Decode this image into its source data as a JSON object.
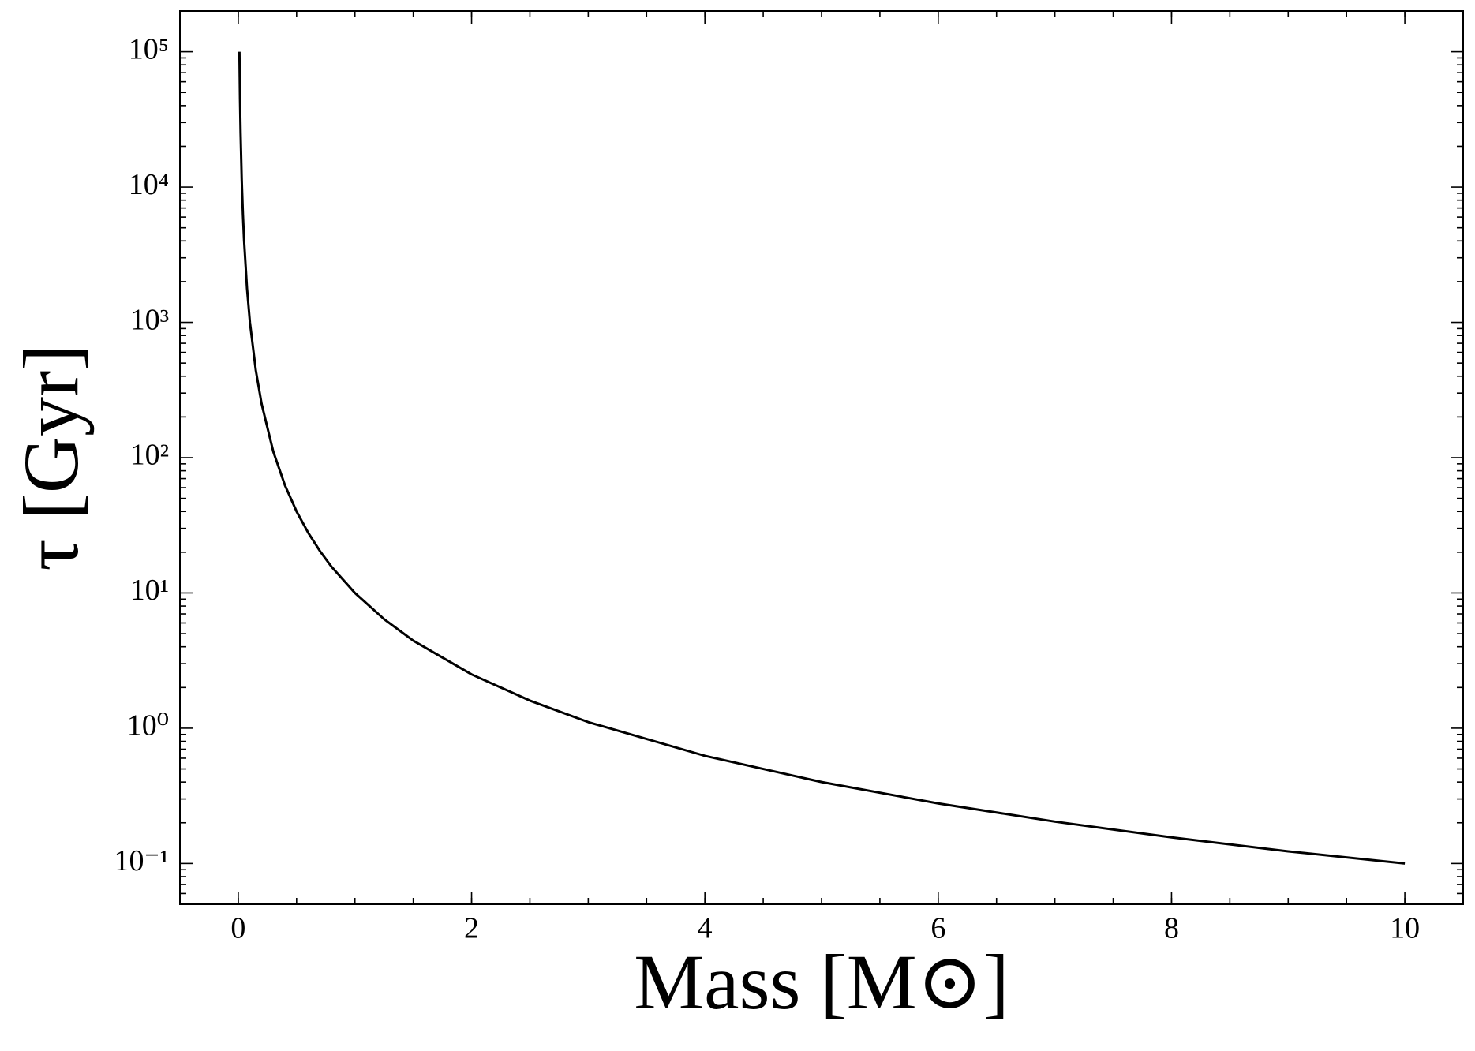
{
  "chart_data": {
    "type": "line",
    "xlabel": "Mass [M⊙]",
    "ylabel": "τ [Gyr]",
    "x": [
      0.01,
      0.015,
      0.02,
      0.03,
      0.04,
      0.05,
      0.075,
      0.1,
      0.15,
      0.2,
      0.3,
      0.4,
      0.5,
      0.6,
      0.7,
      0.8,
      1,
      1.25,
      1.5,
      2,
      2.5,
      3,
      4,
      5,
      6,
      7,
      8,
      9,
      10
    ],
    "series": [
      {
        "color": "#000000",
        "values": [
          100000,
          44444,
          25000,
          11111,
          6250,
          4000,
          1778,
          1000,
          444,
          250,
          111,
          62.5,
          40,
          27.8,
          20.4,
          15.6,
          10,
          6.4,
          4.44,
          2.5,
          1.6,
          1.11,
          0.625,
          0.4,
          0.278,
          0.204,
          0.156,
          0.123,
          0.1
        ]
      }
    ],
    "xlim": [
      -0.5,
      10.5
    ],
    "xticks": [
      0,
      2,
      4,
      6,
      8,
      10
    ],
    "ylim": [
      0.05,
      200000
    ],
    "yscale": "log",
    "yticks": [
      {
        "value": 0.1,
        "label": "10⁻¹"
      },
      {
        "value": 1,
        "label": "10⁰"
      },
      {
        "value": 10,
        "label": "10¹"
      },
      {
        "value": 100,
        "label": "10²"
      },
      {
        "value": 1000,
        "label": "10³"
      },
      {
        "value": 10000,
        "label": "10⁴"
      },
      {
        "value": 100000,
        "label": "10⁵"
      }
    ]
  }
}
